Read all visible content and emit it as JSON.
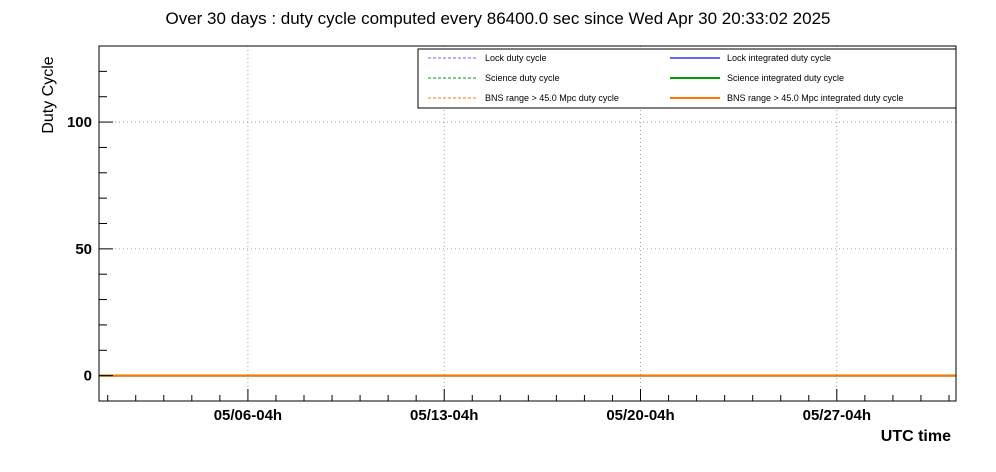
{
  "chart_data": {
    "type": "line",
    "title": "Over 30 days : duty cycle computed every 86400.0 sec since Wed Apr 30 20:33:02 2025",
    "xlabel": "UTC time",
    "ylabel": "Duty Cycle",
    "x_start": "2025-04-30 20:33:02",
    "x_range_days": [
      0,
      30.56
    ],
    "ylim": [
      -10,
      130
    ],
    "y_ticks": [
      0,
      50,
      100
    ],
    "y_tick_labels": [
      "0",
      "50",
      "100"
    ],
    "x_ticks_days": [
      5.31,
      12.31,
      19.31,
      26.31
    ],
    "x_tick_labels": [
      "05/06-04h",
      "05/13-04h",
      "05/20-04h",
      "05/27-04h"
    ],
    "grid": true,
    "legend_position": "top-right",
    "legend": [
      {
        "label": "Lock duty cycle",
        "color": "#6666ff",
        "style": "dashed"
      },
      {
        "label": "Lock integrated duty cycle",
        "color": "#6666ff",
        "style": "solid"
      },
      {
        "label": "Science duty cycle",
        "color": "#009900",
        "style": "dashed"
      },
      {
        "label": "Science integrated duty cycle",
        "color": "#009900",
        "style": "solid"
      },
      {
        "label": "BNS range > 45.0 Mpc duty cycle",
        "color": "#ff7700",
        "style": "dashed"
      },
      {
        "label": "BNS range > 45.0 Mpc integrated duty cycle",
        "color": "#ff7700",
        "style": "solid"
      }
    ],
    "series": [
      {
        "name": "Lock duty cycle",
        "x": [
          0,
          30.56
        ],
        "values": [
          0,
          0
        ],
        "color": "#6666ff",
        "style": "dashed"
      },
      {
        "name": "Lock integrated duty cycle",
        "x": [
          0,
          30.56
        ],
        "values": [
          0,
          0
        ],
        "color": "#6666ff",
        "style": "solid"
      },
      {
        "name": "Science duty cycle",
        "x": [
          0,
          30.56
        ],
        "values": [
          0,
          0
        ],
        "color": "#009900",
        "style": "dashed"
      },
      {
        "name": "Science integrated duty cycle",
        "x": [
          0,
          30.56
        ],
        "values": [
          0,
          0
        ],
        "color": "#009900",
        "style": "solid"
      },
      {
        "name": "BNS range > 45.0 Mpc duty cycle",
        "x": [
          0,
          30.56
        ],
        "values": [
          0,
          0
        ],
        "color": "#ff7700",
        "style": "dashed"
      },
      {
        "name": "BNS range > 45.0 Mpc integrated duty cycle",
        "x": [
          0,
          30.56
        ],
        "values": [
          0,
          0
        ],
        "color": "#ff7700",
        "style": "solid"
      }
    ]
  }
}
